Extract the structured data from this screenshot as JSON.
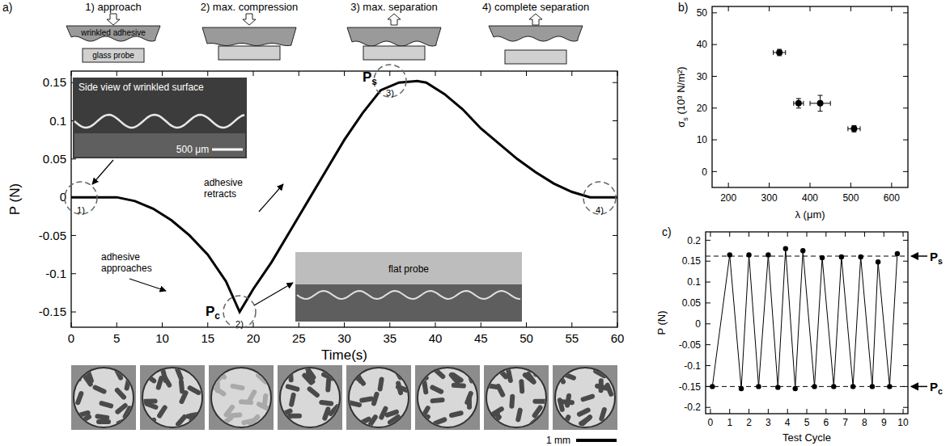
{
  "chart_data": [
    {
      "type": "line",
      "title": "a)",
      "x_label": "Time(s)",
      "y_label": "P (N)",
      "x": [
        0,
        5,
        7,
        9,
        11,
        13,
        15,
        17,
        18.5,
        20,
        22,
        24,
        26,
        28,
        30,
        32,
        34,
        36,
        38,
        39,
        41,
        43,
        45,
        47,
        49,
        51,
        53,
        55,
        57,
        60
      ],
      "values": [
        0,
        0,
        -0.005,
        -0.015,
        -0.03,
        -0.05,
        -0.075,
        -0.11,
        -0.15,
        -0.12,
        -0.085,
        -0.045,
        -0.005,
        0.035,
        0.075,
        0.11,
        0.14,
        0.15,
        0.152,
        0.15,
        0.135,
        0.115,
        0.09,
        0.07,
        0.05,
        0.033,
        0.018,
        0.007,
        0,
        0
      ],
      "color": "#000000",
      "line_style": "solid",
      "xlim": [
        0,
        60
      ],
      "xticks": [
        0,
        5,
        10,
        15,
        20,
        25,
        30,
        35,
        40,
        45,
        50,
        55,
        60
      ],
      "ylim": [
        -0.17,
        0.165
      ],
      "yticks": [
        -0.15,
        -0.1,
        -0.05,
        0,
        0.05,
        0.1,
        0.15
      ],
      "stages": [
        "1) approach",
        "2) max. compression",
        "3) max. separation",
        "4) complete separation"
      ],
      "schematic_labels": {
        "adhesive": "wrinkled adhesive",
        "probe": "glass probe"
      },
      "annotations": {
        "approaches": "adhesive approaches",
        "retracts": "adhesive retracts",
        "compression_peak": "Pc",
        "separation_peak": "Ps",
        "stage_markers": [
          "1)",
          "2)",
          "3)",
          "4)"
        ],
        "inset_top": "Side view of wrinkled surface",
        "inset_top_scale": "500 μm",
        "inset_bottom": "flat probe",
        "image_scale": "1 mm"
      }
    },
    {
      "type": "scatter",
      "title": "b)",
      "x_label": "λ (μm)",
      "y_label": "σs (10³ N/m²)",
      "x": [
        325,
        372,
        425,
        508
      ],
      "values": [
        37.5,
        21.5,
        21.5,
        13.5
      ],
      "errors": [
        1,
        1.5,
        2.5,
        1
      ],
      "x_errors": [
        15,
        12,
        25,
        15
      ],
      "color": "#000000",
      "marker": "circle",
      "xlim": [
        160,
        640
      ],
      "xticks": [
        200,
        300,
        400,
        500,
        600
      ],
      "ylim": [
        -5,
        52
      ],
      "yticks": [
        0,
        10,
        20,
        30,
        40,
        50
      ]
    },
    {
      "type": "line",
      "title": "c)",
      "x_label": "Test Cycle",
      "y_label": "P (N)",
      "x": [
        0.1,
        1,
        1.6,
        2,
        2.5,
        3,
        3.5,
        3.9,
        4.4,
        4.8,
        5.4,
        5.8,
        6.4,
        6.8,
        7.4,
        7.8,
        8.4,
        8.7,
        9.3,
        9.7
      ],
      "values": [
        -0.15,
        0.165,
        -0.155,
        0.165,
        -0.15,
        0.165,
        -0.152,
        0.18,
        -0.155,
        0.175,
        -0.15,
        0.158,
        -0.15,
        0.16,
        -0.15,
        0.16,
        -0.15,
        0.148,
        -0.15,
        0.168
      ],
      "color": "#000000",
      "marker": "circle",
      "line_style": "solid",
      "xlim": [
        -0.25,
        10.25
      ],
      "xticks": [
        0,
        1,
        2,
        3,
        4,
        5,
        6,
        7,
        8,
        9,
        10
      ],
      "ylim": [
        -0.215,
        0.22
      ],
      "yticks": [
        -0.2,
        -0.15,
        -0.1,
        -0.05,
        0,
        0.05,
        0.1,
        0.15,
        0.2
      ],
      "reference_lines": [
        {
          "value": 0.162,
          "label": "Ps"
        },
        {
          "value": -0.15,
          "label": "Pc"
        }
      ]
    }
  ]
}
